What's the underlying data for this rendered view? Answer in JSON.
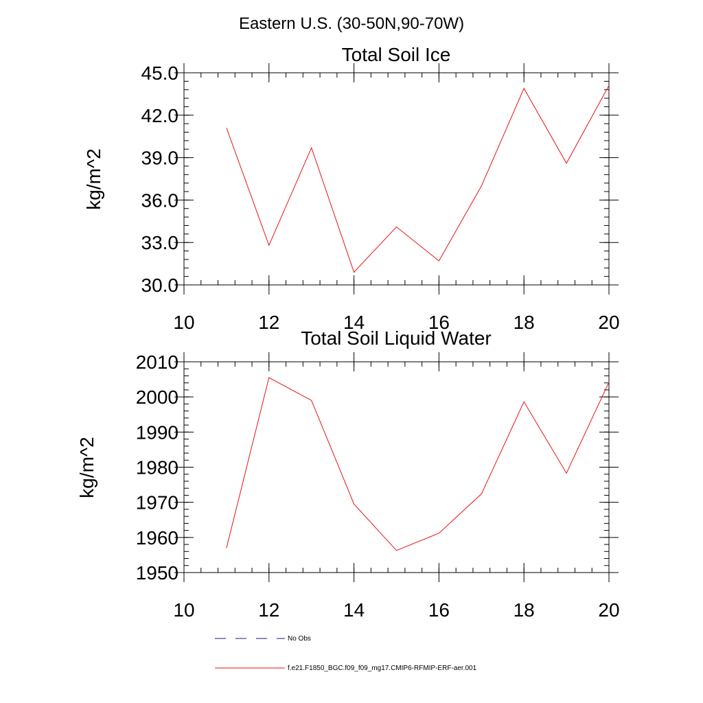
{
  "figure": {
    "region_title": "Eastern U.S. (30-50N,90-70W)"
  },
  "colors": {
    "axis": "#000000",
    "model_line": "#e8110f",
    "obs_line": "#1a1a80",
    "background": "#ffffff"
  },
  "chart_data": [
    {
      "type": "line",
      "title": "Total Soil Ice",
      "xlabel": "",
      "ylabel": "kg/m^2",
      "xlim": [
        10,
        20
      ],
      "ylim": [
        30,
        45
      ],
      "x_ticks": [
        10,
        12,
        14,
        16,
        18,
        20
      ],
      "x_tick_labels": [
        "10",
        "12",
        "14",
        "16",
        "18",
        "20"
      ],
      "y_ticks": [
        30,
        33,
        36,
        39,
        42,
        45
      ],
      "y_tick_labels": [
        "30.0",
        "33.0",
        "36.0",
        "39.0",
        "42.0",
        "45.0"
      ],
      "y_minor_step": 0.6,
      "x_minor_step": 0.4,
      "series": [
        {
          "name": "f.e21.F1850_BGC.f09_f09_mg17.CMIP6-RFMIP-ERF-aer.001",
          "x": [
            11,
            12,
            13,
            14,
            15,
            16,
            17,
            18,
            19,
            20
          ],
          "values": [
            41.1,
            32.8,
            39.7,
            30.9,
            34.1,
            31.7,
            37.0,
            43.9,
            38.6,
            44.1
          ]
        }
      ]
    },
    {
      "type": "line",
      "title": "Total Soil Liquid Water",
      "xlabel": "",
      "ylabel": "kg/m^2",
      "xlim": [
        10,
        20
      ],
      "ylim": [
        1950,
        2010
      ],
      "x_ticks": [
        10,
        12,
        14,
        16,
        18,
        20
      ],
      "x_tick_labels": [
        "10",
        "12",
        "14",
        "16",
        "18",
        "20"
      ],
      "y_ticks": [
        1950,
        1960,
        1970,
        1980,
        1990,
        2000,
        2010
      ],
      "y_tick_labels": [
        "1950",
        "1960",
        "1970",
        "1980",
        "1990",
        "2000",
        "2010"
      ],
      "y_minor_step": 2,
      "x_minor_step": 0.4,
      "series": [
        {
          "name": "f.e21.F1850_BGC.f09_f09_mg17.CMIP6-RFMIP-ERF-aer.001",
          "x": [
            11,
            12,
            13,
            14,
            15,
            16,
            17,
            18,
            19,
            20
          ],
          "values": [
            1957,
            2005.5,
            1999,
            1969.5,
            1956.3,
            1961.2,
            1972.4,
            1998.6,
            1978.3,
            2004.2
          ]
        }
      ]
    }
  ],
  "legend": {
    "position": "bottom",
    "items": [
      {
        "label": "No Obs",
        "style": "dashed",
        "color": "#1a1a80"
      },
      {
        "label": "f.e21.F1850_BGC.f09_f09_mg17.CMIP6-RFMIP-ERF-aer.001",
        "style": "solid",
        "color": "#e8110f"
      }
    ]
  }
}
